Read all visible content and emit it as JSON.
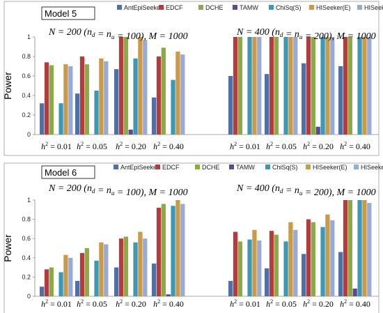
{
  "colors": {
    "AntEpiSeeker": "#4f6fa8",
    "EDCF": "#b43c3c",
    "DCHE": "#8aaa48",
    "TAMW": "#5c4a8c",
    "ChiSq(S)": "#3c98b4",
    "HISeeker(E)": "#c89a4a",
    "HISeeker(A)": "#98aad8"
  },
  "chart_data": [
    {
      "type": "bar",
      "panel_label": "Model 5",
      "ylabel": "Power",
      "ylim": [
        0,
        1
      ],
      "yticks": [
        "0",
        "0.2",
        "0.4",
        "0.6",
        "0.8",
        "1"
      ],
      "legend": [
        "AntEpiSeeker",
        "EDCF",
        "DCHE",
        "TAMW",
        "ChiSq(S)",
        "HISeeker(E)",
        "HISeeker(A)"
      ],
      "legend_position": "top",
      "groups": [
        {
          "header": "N = 200 (n_d = n_u = 100), M = 1000",
          "categories": [
            "h² = 0.01",
            "h² = 0.05",
            "h² = 0.20",
            "h² = 0.40"
          ],
          "series": [
            {
              "name": "AntEpiSeeker",
              "values": [
                0.32,
                0.42,
                0.67,
                0.38
              ]
            },
            {
              "name": "EDCF",
              "values": [
                0.74,
                0.8,
                1.0,
                0.8
              ]
            },
            {
              "name": "DCHE",
              "values": [
                0.71,
                0.72,
                1.0,
                0.89
              ]
            },
            {
              "name": "TAMW",
              "values": [
                0.0,
                0.0,
                0.05,
                0.0
              ]
            },
            {
              "name": "ChiSq(S)",
              "values": [
                0.32,
                0.45,
                0.78,
                0.56
              ]
            },
            {
              "name": "HISeeker(E)",
              "values": [
                0.72,
                0.78,
                1.0,
                0.85
              ]
            },
            {
              "name": "HISeeker(A)",
              "values": [
                0.7,
                0.75,
                0.97,
                0.82
              ]
            }
          ]
        },
        {
          "header": "N = 400 (n_d = n_u = 200), M = 1000",
          "categories": [
            "h² = 0.01",
            "h² = 0.05",
            "h² = 0.20",
            "h² = 0.40"
          ],
          "series": [
            {
              "name": "AntEpiSeeker",
              "values": [
                0.6,
                0.62,
                0.73,
                0.7
              ]
            },
            {
              "name": "EDCF",
              "values": [
                1.0,
                1.0,
                1.0,
                1.0
              ]
            },
            {
              "name": "DCHE",
              "values": [
                1.0,
                1.0,
                1.0,
                1.0
              ]
            },
            {
              "name": "TAMW",
              "values": [
                0.0,
                0.0,
                0.08,
                0.0
              ]
            },
            {
              "name": "ChiSq(S)",
              "values": [
                1.0,
                1.0,
                1.0,
                1.0
              ]
            },
            {
              "name": "HISeeker(E)",
              "values": [
                1.0,
                1.0,
                1.0,
                1.0
              ]
            },
            {
              "name": "HISeeker(A)",
              "values": [
                1.0,
                1.0,
                1.0,
                1.0
              ]
            }
          ]
        }
      ]
    },
    {
      "type": "bar",
      "panel_label": "Model 6",
      "ylabel": "Power",
      "ylim": [
        0,
        1
      ],
      "yticks": [
        "0",
        "0.2",
        "0.4",
        "0.6",
        "0.8",
        "1"
      ],
      "legend": [
        "AntEpiSeeker",
        "EDCF",
        "DCHE",
        "TAMW",
        "ChiSq(S)",
        "HISeeker(E)",
        "HISeeker(A)"
      ],
      "legend_position": "top",
      "groups": [
        {
          "header": "N = 200 (n_d = n_u = 100), M = 1000",
          "categories": [
            "h² = 0.01",
            "h² = 0.05",
            "h² = 0.20",
            "h² = 0.40"
          ],
          "series": [
            {
              "name": "AntEpiSeeker",
              "values": [
                0.1,
                0.16,
                0.3,
                0.34
              ]
            },
            {
              "name": "EDCF",
              "values": [
                0.28,
                0.45,
                0.6,
                0.92
              ]
            },
            {
              "name": "DCHE",
              "values": [
                0.3,
                0.5,
                0.62,
                0.96
              ]
            },
            {
              "name": "TAMW",
              "values": [
                0.0,
                0.0,
                0.0,
                0.02
              ]
            },
            {
              "name": "ChiSq(S)",
              "values": [
                0.25,
                0.37,
                0.56,
                0.94
              ]
            },
            {
              "name": "HISeeker(E)",
              "values": [
                0.43,
                0.56,
                0.67,
                1.0
              ]
            },
            {
              "name": "HISeeker(A)",
              "values": [
                0.4,
                0.54,
                0.6,
                0.96
              ]
            }
          ]
        },
        {
          "header": "N = 400 (n_d = n_u = 200), M = 1000",
          "categories": [
            "h² = 0.01",
            "h² = 0.05",
            "h² = 0.20",
            "h² = 0.40"
          ],
          "series": [
            {
              "name": "AntEpiSeeker",
              "values": [
                0.16,
                0.29,
                0.44,
                0.46
              ]
            },
            {
              "name": "EDCF",
              "values": [
                0.67,
                0.68,
                0.8,
                1.0
              ]
            },
            {
              "name": "DCHE",
              "values": [
                0.57,
                0.64,
                0.77,
                1.0
              ]
            },
            {
              "name": "TAMW",
              "values": [
                0.0,
                0.0,
                0.0,
                0.08
              ]
            },
            {
              "name": "ChiSq(S)",
              "values": [
                0.59,
                0.57,
                0.72,
                1.0
              ]
            },
            {
              "name": "HISeeker(E)",
              "values": [
                0.69,
                0.77,
                0.85,
                1.0
              ]
            },
            {
              "name": "HISeeker(A)",
              "values": [
                0.58,
                0.69,
                0.79,
                0.97
              ]
            }
          ]
        }
      ]
    }
  ]
}
